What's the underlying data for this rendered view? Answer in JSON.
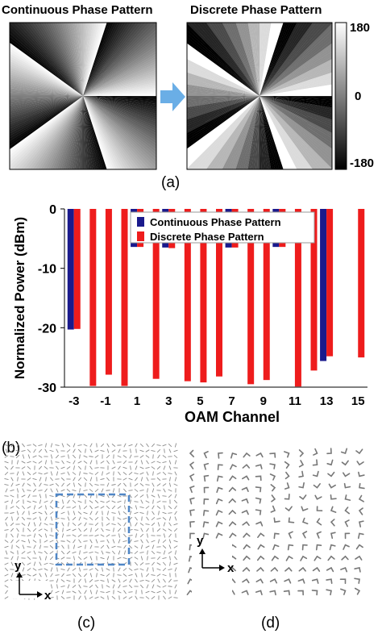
{
  "panel_a": {
    "title_left": "Continuous Phase Pattern",
    "title_right": "Discrete Phase Pattern",
    "colorbar_ticks": [
      "180",
      "0",
      "-180"
    ],
    "label": "(a)"
  },
  "panel_b": {
    "label": "(b)"
  },
  "panel_c": {
    "label": "(c)",
    "axis_y": "y",
    "axis_x": "x"
  },
  "panel_d": {
    "label": "(d)",
    "axis_y": "y",
    "axis_x": "x"
  },
  "colors": {
    "continuous": "#1a1a8c",
    "discrete": "#ee1c1c",
    "arrow": "#6aaee6",
    "dashed_box": "#4f86c6"
  },
  "chart_data": {
    "type": "bar",
    "title": "",
    "xlabel": "OAM Channel",
    "ylabel": "Normalized Power (dBm)",
    "ylim": [
      -30,
      0
    ],
    "yticks": [
      0,
      -10,
      -20,
      -30
    ],
    "x": [
      -3,
      -2,
      -1,
      0,
      1,
      2,
      3,
      4,
      5,
      6,
      7,
      8,
      9,
      10,
      11,
      12,
      13,
      14,
      15
    ],
    "xtick_labels": [
      "-3",
      "-1",
      "1",
      "3",
      "5",
      "7",
      "9",
      "11",
      "13",
      "15"
    ],
    "legend_position": "top-right",
    "series": [
      {
        "name": "Continuous Phase Pattern",
        "values": [
          -20.3,
          null,
          null,
          null,
          -6.4,
          null,
          -6.5,
          null,
          null,
          null,
          -6.5,
          null,
          null,
          -6.4,
          null,
          null,
          -25.6,
          null,
          null
        ]
      },
      {
        "name": "Discrete Phase Pattern",
        "values": [
          -20.2,
          -29.8,
          -27.9,
          -29.8,
          -6.4,
          -28.6,
          -6.6,
          -29.0,
          -29.2,
          -28.2,
          -6.5,
          -29.5,
          -28.8,
          -6.4,
          -29.9,
          -27.2,
          -24.8,
          null,
          -25.0
        ]
      }
    ]
  }
}
